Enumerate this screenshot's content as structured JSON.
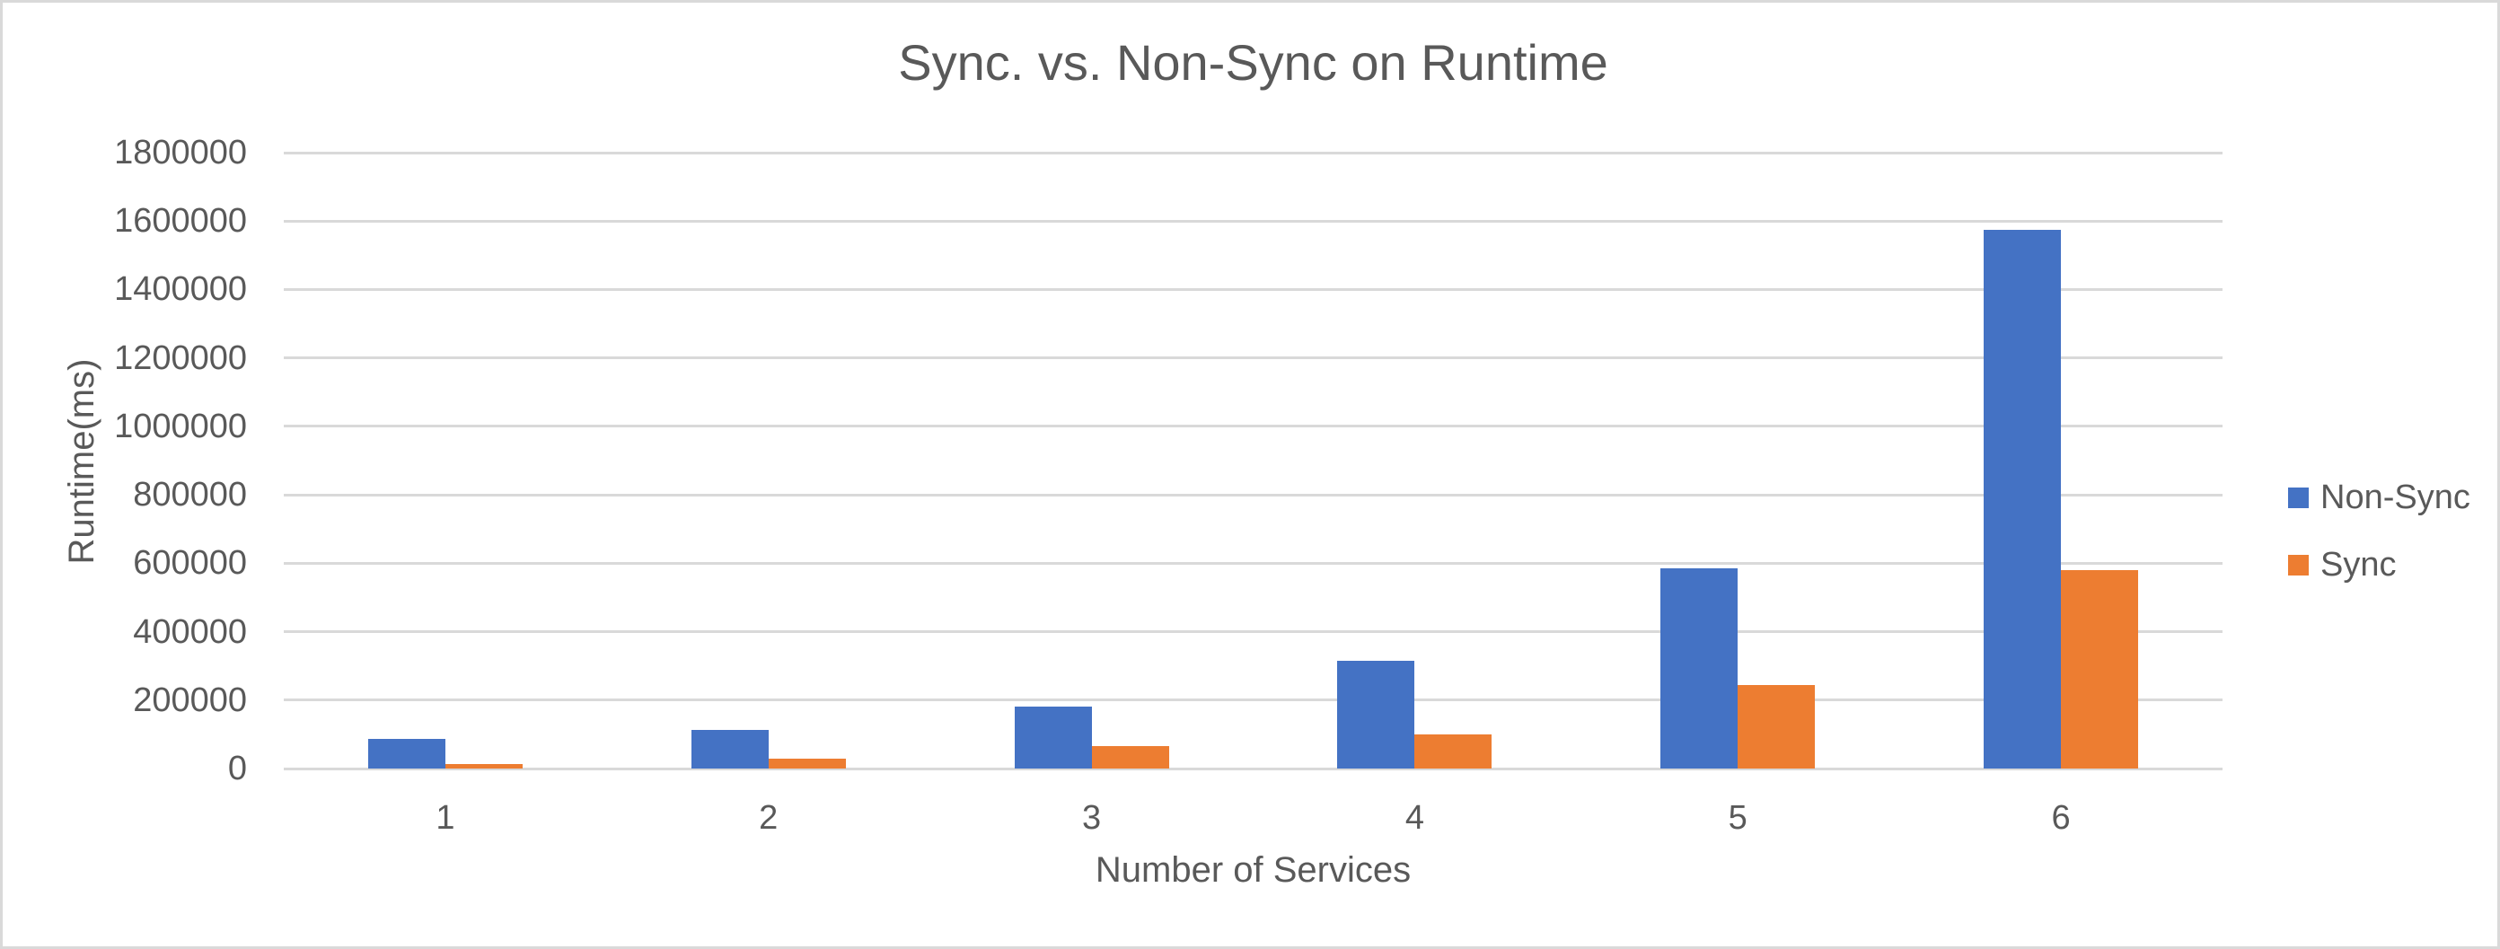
{
  "window": {
    "background": "#ffffff",
    "border_color": "#d9d9d9"
  },
  "chart_data": {
    "type": "bar",
    "title": "Sync. vs. Non-Sync on Runtime",
    "xlabel": "Number of Services",
    "ylabel": "Runtime(ms)",
    "categories": [
      "1",
      "2",
      "3",
      "4",
      "5",
      "6"
    ],
    "series": [
      {
        "name": "Non-Sync",
        "color": "#4472C4",
        "values": [
          86000,
          114000,
          180000,
          315000,
          585000,
          1575000
        ]
      },
      {
        "name": "Sync",
        "color": "#ED7D31",
        "values": [
          13000,
          30000,
          66000,
          100000,
          243000,
          580000
        ]
      }
    ],
    "ylim": [
      0,
      1800000
    ],
    "ytick_step": 200000,
    "yticks": [
      "0",
      "200000",
      "400000",
      "600000",
      "800000",
      "1000000",
      "1200000",
      "1400000",
      "1600000",
      "1800000"
    ],
    "grid": true,
    "legend_position": "right",
    "colors": {
      "text": "#595959",
      "gridline": "#d9d9d9"
    }
  }
}
